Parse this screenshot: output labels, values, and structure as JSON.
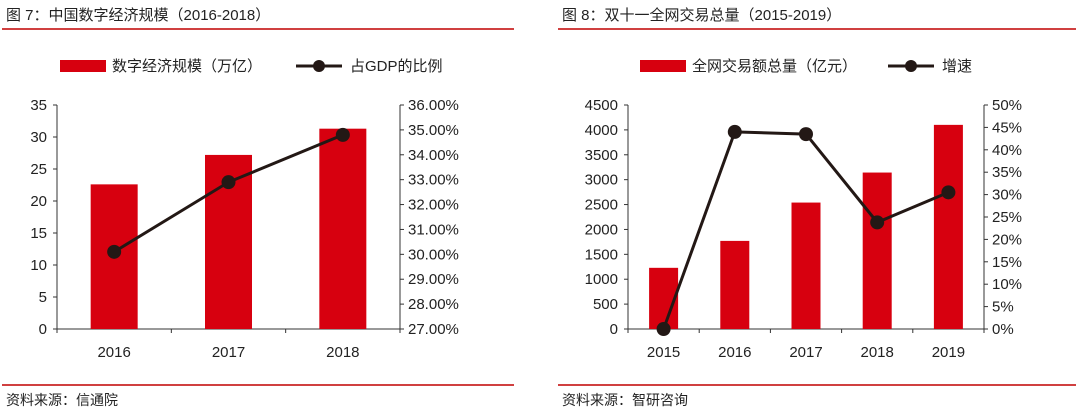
{
  "colors": {
    "bar": "#d7000f",
    "line": "#231815",
    "rule": "#c00000"
  },
  "chart_data": [
    {
      "type": "bar+line",
      "title": "图 7：中国数字经济规模（2016-2018）",
      "source": "资料来源：信通院",
      "categories": [
        "2016",
        "2017",
        "2018"
      ],
      "series": [
        {
          "name": "数字经济规模（万亿）",
          "type": "bar",
          "axis": "left",
          "values": [
            22.6,
            27.2,
            31.3
          ]
        },
        {
          "name": "占GDP的比例",
          "type": "line",
          "axis": "right",
          "values": [
            30.1,
            32.9,
            34.8
          ]
        }
      ],
      "left_axis": {
        "ylim": [
          0,
          35
        ],
        "ticks": [
          "0",
          "5",
          "10",
          "15",
          "20",
          "25",
          "30",
          "35"
        ]
      },
      "right_axis": {
        "ylim": [
          27,
          36
        ],
        "ticks": [
          "27.00%",
          "28.00%",
          "29.00%",
          "30.00%",
          "31.00%",
          "32.00%",
          "33.00%",
          "34.00%",
          "35.00%",
          "36.00%"
        ]
      },
      "legend": "top",
      "grid": false
    },
    {
      "type": "bar+line",
      "title": "图 8：双十一全网交易总量（2015-2019）",
      "source": "资料来源：智研咨询",
      "categories": [
        "2015",
        "2016",
        "2017",
        "2018",
        "2019"
      ],
      "series": [
        {
          "name": "全网交易额总量（亿元）",
          "type": "bar",
          "axis": "left",
          "values": [
            1229,
            1770,
            2540,
            3143,
            4101
          ]
        },
        {
          "name": "增速",
          "type": "line",
          "axis": "right",
          "values": [
            0,
            44,
            43.5,
            23.8,
            30.5
          ]
        }
      ],
      "left_axis": {
        "ylim": [
          0,
          4500
        ],
        "ticks": [
          "0",
          "500",
          "1000",
          "1500",
          "2000",
          "2500",
          "3000",
          "3500",
          "4000",
          "4500"
        ]
      },
      "right_axis": {
        "ylim": [
          0,
          50
        ],
        "ticks": [
          "0%",
          "5%",
          "10%",
          "15%",
          "20%",
          "25%",
          "30%",
          "35%",
          "40%",
          "45%",
          "50%"
        ]
      },
      "legend": "top",
      "grid": false
    }
  ]
}
